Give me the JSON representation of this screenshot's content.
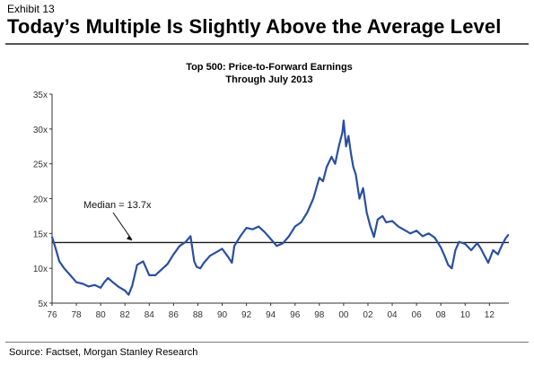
{
  "exhibit_label": "Exhibit 13",
  "headline": "Today’s Multiple Is Slightly Above the Average Level",
  "source": "Source: Factset, Morgan Stanley Research",
  "colors": {
    "series": "#2a4fa0",
    "median_line": "#1a1a1a",
    "axis": "#333333"
  },
  "chart_data": {
    "type": "line",
    "title": "Top 500: Price-to-Forward Earnings",
    "subtitle": "Through July 2013",
    "xlabel": "",
    "ylabel": "",
    "xlim": [
      1976,
      2013.6
    ],
    "ylim": [
      5,
      35
    ],
    "x_ticks": [
      "76",
      "78",
      "80",
      "82",
      "84",
      "86",
      "88",
      "90",
      "92",
      "94",
      "96",
      "98",
      "00",
      "02",
      "04",
      "06",
      "08",
      "10",
      "12"
    ],
    "y_ticks": [
      "5x",
      "10x",
      "15x",
      "20x",
      "25x",
      "30x",
      "35x"
    ],
    "grid": false,
    "legend": "none",
    "median": {
      "value": 13.7,
      "label": "Median = 13.7x"
    },
    "series": [
      {
        "x": [
          1976.0,
          1976.3,
          1976.6,
          1977.0,
          1977.5,
          1978.0,
          1978.5,
          1979.0,
          1979.5,
          1980.0,
          1980.3,
          1980.6,
          1981.0,
          1981.5,
          1982.0,
          1982.3,
          1982.6,
          1983.0,
          1983.5,
          1984.0,
          1984.5,
          1985.0,
          1985.5,
          1986.0,
          1986.5,
          1987.0,
          1987.4,
          1987.7,
          1987.9,
          1988.2,
          1988.5,
          1989.0,
          1989.5,
          1990.0,
          1990.5,
          1990.8,
          1991.0,
          1991.5,
          1992.0,
          1992.5,
          1993.0,
          1993.5,
          1994.0,
          1994.5,
          1995.0,
          1995.5,
          1996.0,
          1996.5,
          1997.0,
          1997.5,
          1998.0,
          1998.3,
          1998.6,
          1999.0,
          1999.3,
          1999.6,
          1999.9,
          2000.0,
          2000.2,
          2000.4,
          2000.6,
          2000.8,
          2001.0,
          2001.3,
          2001.6,
          2001.9,
          2002.2,
          2002.5,
          2002.8,
          2003.2,
          2003.5,
          2004.0,
          2004.5,
          2005.0,
          2005.5,
          2006.0,
          2006.5,
          2007.0,
          2007.5,
          2008.0,
          2008.3,
          2008.6,
          2008.9,
          2009.2,
          2009.5,
          2010.0,
          2010.5,
          2011.0,
          2011.3,
          2011.6,
          2011.9,
          2012.3,
          2012.7,
          2013.0,
          2013.3,
          2013.55
        ],
        "values": [
          14.5,
          12.8,
          11.0,
          10.0,
          9.0,
          8.0,
          7.8,
          7.4,
          7.6,
          7.2,
          8.0,
          8.6,
          8.0,
          7.3,
          6.8,
          6.2,
          7.5,
          10.5,
          11.0,
          9.0,
          9.0,
          9.8,
          10.6,
          12.0,
          13.2,
          13.8,
          14.6,
          11.0,
          10.2,
          10.0,
          10.8,
          11.8,
          12.3,
          12.8,
          11.6,
          10.8,
          13.2,
          14.6,
          15.8,
          15.6,
          16.0,
          15.2,
          14.2,
          13.2,
          13.6,
          14.6,
          16.0,
          16.6,
          18.0,
          20.0,
          23.0,
          22.5,
          24.5,
          26.0,
          25.0,
          27.5,
          29.5,
          31.2,
          27.5,
          29.0,
          26.5,
          24.5,
          23.5,
          20.0,
          21.5,
          18.0,
          16.0,
          14.5,
          17.0,
          17.5,
          16.6,
          16.8,
          16.0,
          15.5,
          15.0,
          15.4,
          14.6,
          15.0,
          14.4,
          13.0,
          11.8,
          10.5,
          10.0,
          12.6,
          13.8,
          13.5,
          12.6,
          13.6,
          12.8,
          11.8,
          10.8,
          12.6,
          12.0,
          13.2,
          14.2,
          14.8
        ]
      }
    ]
  }
}
